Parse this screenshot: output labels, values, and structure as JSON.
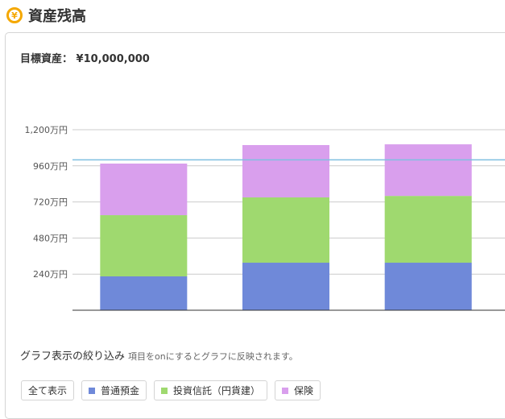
{
  "header": {
    "title": "資産残高",
    "icon": "yen-coin-icon"
  },
  "target": {
    "label": "目標資産：",
    "value": "¥10,000,000"
  },
  "colors": {
    "accent": "#f5a800",
    "savings": "#6f89d9",
    "funds": "#9fd96f",
    "insurance": "#d99fed",
    "target_line": "#7fbfe0"
  },
  "chart_data": {
    "type": "bar",
    "stacked": true,
    "categories": [
      "",
      "",
      ""
    ],
    "series": [
      {
        "name": "普通預金",
        "values": [
          225,
          316,
          316
        ]
      },
      {
        "name": "投資信託（円貨建）",
        "values": [
          407,
          434,
          444
        ]
      },
      {
        "name": "保険",
        "values": [
          343,
          348,
          343
        ]
      }
    ],
    "target_value": 1000,
    "ylim": [
      0,
      1200
    ],
    "yticks": [
      "240万円",
      "480万円",
      "720万円",
      "960万円",
      "1,200万円"
    ],
    "ytick_values": [
      240,
      480,
      720,
      960,
      1200
    ],
    "grid": true,
    "unit": "万円"
  },
  "filter": {
    "title": "グラフ表示の絞り込み",
    "hint": "項目をonにするとグラフに反映されます。",
    "buttons": [
      {
        "label": "全て表示"
      },
      {
        "label": "普通預金"
      },
      {
        "label": "投資信託（円貨建）"
      },
      {
        "label": "保険"
      }
    ]
  }
}
